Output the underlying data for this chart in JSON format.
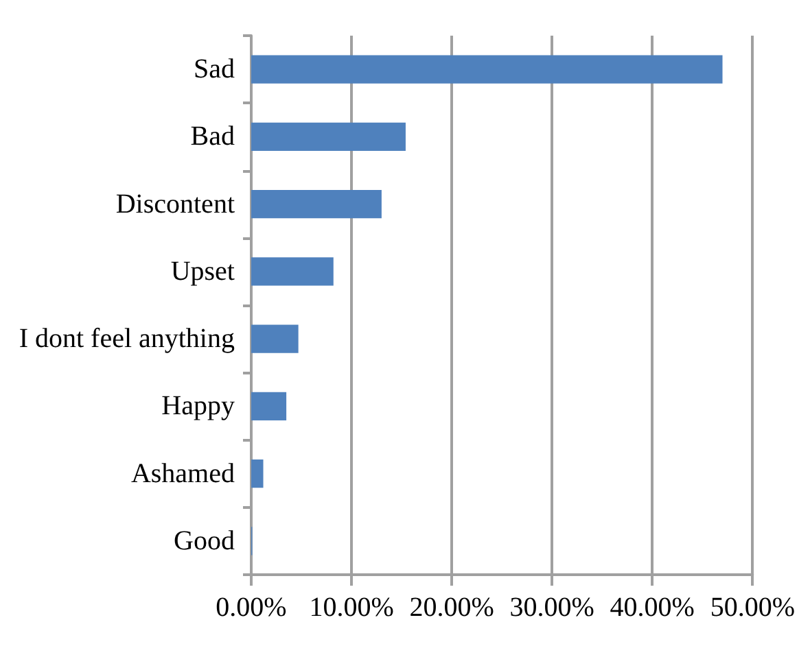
{
  "chart_data": {
    "type": "bar",
    "orientation": "horizontal",
    "categories": [
      "Sad",
      "Bad",
      "Discontent",
      "Upset",
      "I dont feel anything",
      "Happy",
      "Ashamed",
      "Good"
    ],
    "values": [
      47.0,
      15.4,
      13.0,
      8.2,
      4.7,
      3.5,
      1.2,
      0.1
    ],
    "color": "#4f81bd",
    "xlim": [
      0,
      50
    ],
    "xticks": [
      {
        "value": 0,
        "label": "0.00%"
      },
      {
        "value": 10,
        "label": "10.00%"
      },
      {
        "value": 20,
        "label": "20.00%"
      },
      {
        "value": 30,
        "label": "30.00%"
      },
      {
        "value": 40,
        "label": "40.00%"
      },
      {
        "value": 50,
        "label": "50.00%"
      }
    ],
    "grid": "x"
  }
}
